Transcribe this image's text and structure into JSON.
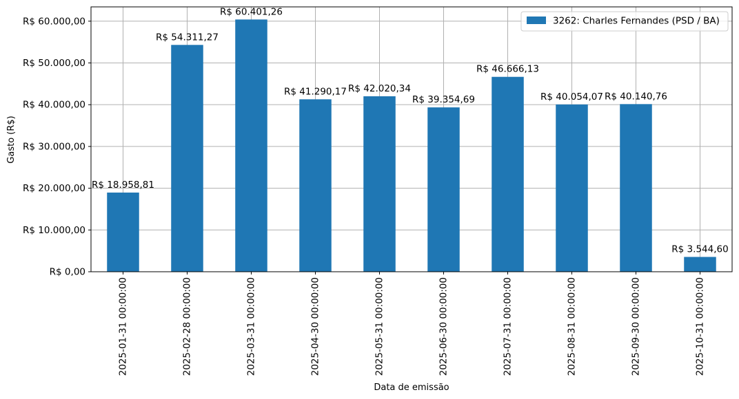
{
  "chart_data": {
    "type": "bar",
    "xlabel": "Data de emissão",
    "ylabel": "Gasto (R$)",
    "categories": [
      "2025-01-31 00:00:00",
      "2025-02-28 00:00:00",
      "2025-03-31 00:00:00",
      "2025-04-30 00:00:00",
      "2025-05-31 00:00:00",
      "2025-06-30 00:00:00",
      "2025-07-31 00:00:00",
      "2025-08-31 00:00:00",
      "2025-09-30 00:00:00",
      "2025-10-31 00:00:00"
    ],
    "series": [
      {
        "name": "3262: Charles Fernandes (PSD / BA)",
        "color": "#1f77b4",
        "values": [
          18958.81,
          54311.27,
          60401.26,
          41290.17,
          42020.34,
          39354.69,
          46666.13,
          40054.07,
          40140.76,
          3544.6
        ],
        "labels": [
          "R$ 18.958,81",
          "R$ 54.311,27",
          "R$ 60.401,26",
          "R$ 41.290,17",
          "R$ 42.020,34",
          "R$ 39.354,69",
          "R$ 46.666,13",
          "R$ 40.054,07",
          "R$ 40.140,76",
          "R$ 3.544,60"
        ]
      }
    ],
    "yticks": [
      0,
      10000,
      20000,
      30000,
      40000,
      50000,
      60000
    ],
    "ytick_labels": [
      "R$ 0,00",
      "R$ 10.000,00",
      "R$ 20.000,00",
      "R$ 30.000,00",
      "R$ 40.000,00",
      "R$ 50.000,00",
      "R$ 60.000,00"
    ],
    "ylim": [
      0,
      63421.32
    ],
    "grid": true,
    "legend_position": "top-right"
  }
}
